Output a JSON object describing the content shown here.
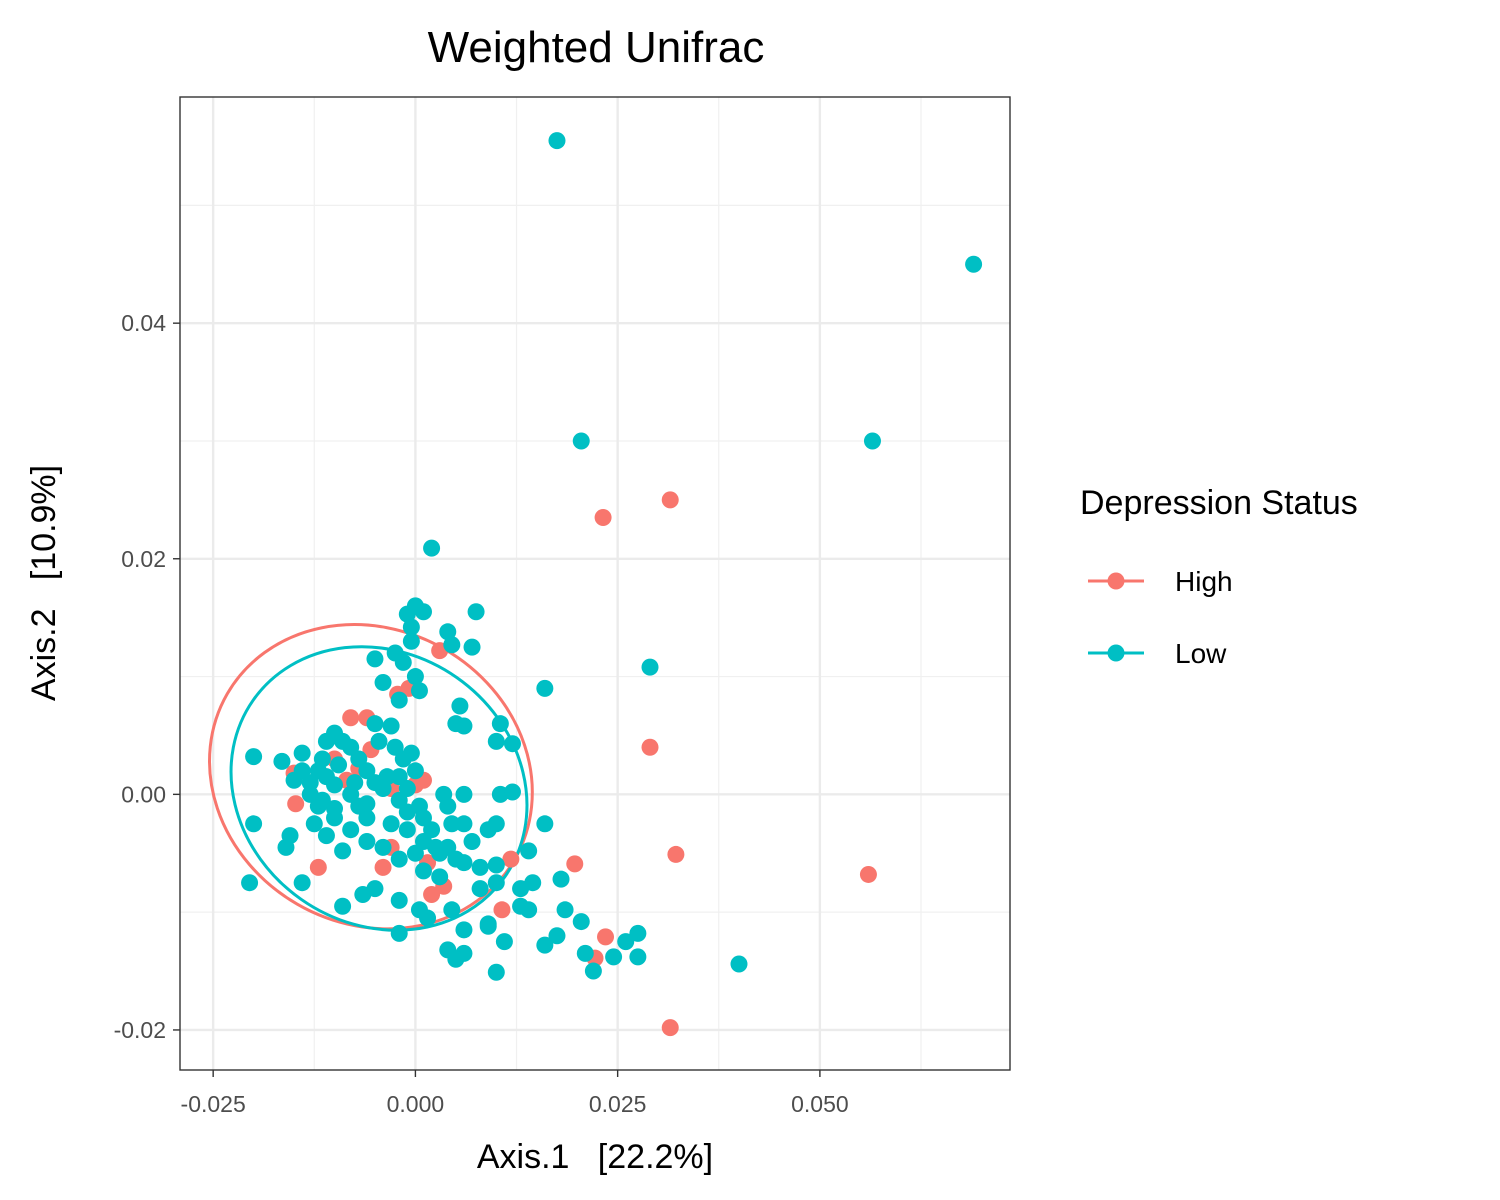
{
  "chart_data": {
    "type": "scatter",
    "title": "Weighted Unifrac",
    "xlabel": "Axis.1   [22.2%]",
    "ylabel": "Axis.2   [10.9%]",
    "xlim": [
      -0.0291,
      0.0735
    ],
    "ylim": [
      -0.0234,
      0.0592
    ],
    "x_ticks": [
      -0.025,
      0.0,
      0.025,
      0.05
    ],
    "x_tick_labels": [
      "-0.025",
      "0.000",
      "0.025",
      "0.050"
    ],
    "y_ticks": [
      -0.02,
      0.0,
      0.02,
      0.04
    ],
    "y_tick_labels": [
      "-0.02",
      "0.00",
      "0.02",
      "0.04"
    ],
    "grid": true,
    "legend": {
      "title": "Depression Status",
      "position": "right",
      "entries": [
        "High",
        "Low"
      ]
    },
    "colors": {
      "High": "#F8766D",
      "Low": "#00BFC4"
    },
    "ellipses": [
      {
        "series": "High",
        "center": [
          -0.0055,
          0.0015
        ],
        "radii": [
          0.0205,
          0.0125
        ],
        "rotation_deg": -30
      },
      {
        "series": "Low",
        "center": [
          -0.0045,
          0.0005
        ],
        "radii": [
          0.019,
          0.0115
        ],
        "rotation_deg": -35
      }
    ],
    "series": [
      {
        "name": "High",
        "points": [
          [
            0.0315,
            0.025
          ],
          [
            0.0232,
            0.0235
          ],
          [
            0.029,
            0.004
          ],
          [
            0.0322,
            -0.0051
          ],
          [
            0.056,
            -0.0068
          ],
          [
            0.0315,
            -0.0198
          ],
          [
            0.0235,
            -0.0121
          ],
          [
            0.0222,
            -0.0139
          ],
          [
            0.0197,
            -0.0059
          ],
          [
            0.0118,
            -0.0055
          ],
          [
            0.0107,
            -0.0098
          ],
          [
            0.003,
            0.0122
          ],
          [
            -0.0008,
            0.009
          ],
          [
            -0.0022,
            0.0085
          ],
          [
            -0.008,
            0.0065
          ],
          [
            -0.006,
            0.0065
          ],
          [
            -0.0055,
            0.0038
          ],
          [
            -0.01,
            0.003
          ],
          [
            -0.015,
            0.0018
          ],
          [
            -0.0148,
            -0.0008
          ],
          [
            -0.012,
            -0.0062
          ],
          [
            -0.004,
            -0.0062
          ],
          [
            -0.003,
            -0.0045
          ],
          [
            0.001,
            0.0012
          ],
          [
            0.0,
            0.0008
          ],
          [
            0.0015,
            -0.0058
          ],
          [
            0.002,
            -0.0085
          ],
          [
            0.0035,
            -0.0078
          ],
          [
            -0.007,
            0.0022
          ],
          [
            -0.0085,
            0.0012
          ],
          [
            -0.003,
            0.0005
          ]
        ]
      },
      {
        "name": "Low",
        "points": [
          [
            0.0175,
            0.0555
          ],
          [
            0.069,
            0.045
          ],
          [
            0.0565,
            0.03
          ],
          [
            0.0205,
            0.03
          ],
          [
            0.002,
            0.0209
          ],
          [
            0.029,
            0.0108
          ],
          [
            0.016,
            0.009
          ],
          [
            0.0075,
            0.0155
          ],
          [
            0.0045,
            0.0127
          ],
          [
            0.007,
            0.0125
          ],
          [
            0.004,
            0.0138
          ],
          [
            0.001,
            0.0155
          ],
          [
            -0.001,
            0.0153
          ],
          [
            0.0,
            0.016
          ],
          [
            -0.0005,
            0.0142
          ],
          [
            -0.0005,
            0.013
          ],
          [
            -0.0025,
            0.012
          ],
          [
            -0.005,
            0.0115
          ],
          [
            -0.0015,
            0.0112
          ],
          [
            0.0,
            0.01
          ],
          [
            0.0005,
            0.0088
          ],
          [
            -0.004,
            0.0095
          ],
          [
            -0.002,
            0.008
          ],
          [
            0.0055,
            0.0075
          ],
          [
            0.006,
            0.0058
          ],
          [
            0.005,
            0.006
          ],
          [
            0.0105,
            0.006
          ],
          [
            0.01,
            0.0045
          ],
          [
            0.012,
            0.0043
          ],
          [
            0.0105,
            0.0
          ],
          [
            0.012,
            0.0002
          ],
          [
            0.016,
            -0.0025
          ],
          [
            0.014,
            -0.0048
          ],
          [
            0.009,
            -0.003
          ],
          [
            0.01,
            -0.0025
          ],
          [
            0.006,
            -0.0025
          ],
          [
            0.004,
            -0.0045
          ],
          [
            0.006,
            -0.0058
          ],
          [
            0.01,
            -0.006
          ],
          [
            0.008,
            -0.0062
          ],
          [
            0.01,
            -0.0075
          ],
          [
            0.013,
            -0.008
          ],
          [
            0.0145,
            -0.0075
          ],
          [
            0.018,
            -0.0072
          ],
          [
            0.013,
            -0.0095
          ],
          [
            0.014,
            -0.0098
          ],
          [
            0.0185,
            -0.0098
          ],
          [
            0.0205,
            -0.0108
          ],
          [
            0.0175,
            -0.012
          ],
          [
            0.016,
            -0.0128
          ],
          [
            0.021,
            -0.0135
          ],
          [
            0.022,
            -0.015
          ],
          [
            0.0245,
            -0.0138
          ],
          [
            0.026,
            -0.0125
          ],
          [
            0.0275,
            -0.0118
          ],
          [
            0.0275,
            -0.0138
          ],
          [
            0.04,
            -0.0144
          ],
          [
            0.01,
            -0.0151
          ],
          [
            0.011,
            -0.0125
          ],
          [
            0.006,
            -0.0135
          ],
          [
            0.004,
            -0.0132
          ],
          [
            0.005,
            -0.014
          ],
          [
            0.006,
            -0.0115
          ],
          [
            0.0045,
            -0.0098
          ],
          [
            0.009,
            -0.011
          ],
          [
            0.009,
            -0.0112
          ],
          [
            0.0005,
            -0.0098
          ],
          [
            0.0015,
            -0.0105
          ],
          [
            -0.002,
            -0.009
          ],
          [
            -0.002,
            -0.0118
          ],
          [
            -0.005,
            -0.008
          ],
          [
            -0.0065,
            -0.0085
          ],
          [
            -0.009,
            -0.0095
          ],
          [
            -0.014,
            -0.0075
          ],
          [
            -0.0205,
            -0.0075
          ],
          [
            -0.02,
            -0.0025
          ],
          [
            -0.016,
            -0.0045
          ],
          [
            -0.0155,
            -0.0035
          ],
          [
            -0.02,
            0.0032
          ],
          [
            -0.0165,
            0.0028
          ],
          [
            -0.014,
            0.0035
          ],
          [
            -0.015,
            0.0012
          ],
          [
            -0.013,
            0.0
          ],
          [
            -0.012,
            -0.001
          ],
          [
            -0.0125,
            -0.0025
          ],
          [
            -0.01,
            -0.002
          ],
          [
            -0.011,
            -0.0035
          ],
          [
            -0.008,
            -0.003
          ],
          [
            -0.009,
            -0.0048
          ],
          [
            -0.006,
            -0.004
          ],
          [
            -0.004,
            -0.0045
          ],
          [
            -0.002,
            -0.0055
          ],
          [
            0.0,
            -0.005
          ],
          [
            0.001,
            -0.004
          ],
          [
            0.002,
            -0.003
          ],
          [
            0.004,
            -0.001
          ],
          [
            0.003,
            -0.005
          ],
          [
            0.001,
            -0.0065
          ],
          [
            0.003,
            -0.007
          ],
          [
            -0.001,
            -0.0015
          ],
          [
            -0.002,
            -0.0005
          ],
          [
            -0.004,
            0.0005
          ],
          [
            -0.005,
            0.001
          ],
          [
            -0.006,
            0.002
          ],
          [
            -0.007,
            0.003
          ],
          [
            -0.008,
            0.004
          ],
          [
            -0.009,
            0.0045
          ],
          [
            -0.01,
            0.0052
          ],
          [
            -0.011,
            0.0045
          ],
          [
            -0.005,
            0.006
          ],
          [
            -0.003,
            0.0058
          ],
          [
            -0.0045,
            0.0045
          ],
          [
            -0.0025,
            0.004
          ],
          [
            -0.0015,
            0.003
          ],
          [
            -0.0005,
            0.0035
          ],
          [
            0.0,
            0.002
          ],
          [
            -0.012,
            0.002
          ],
          [
            -0.011,
            0.0015
          ],
          [
            -0.01,
            0.0008
          ],
          [
            -0.008,
            0.0
          ],
          [
            -0.007,
            -0.001
          ],
          [
            -0.006,
            -0.002
          ],
          [
            -0.003,
            -0.0025
          ],
          [
            -0.001,
            -0.003
          ],
          [
            0.001,
            -0.002
          ],
          [
            0.0035,
            0.0
          ],
          [
            0.006,
            0.0
          ],
          [
            0.007,
            -0.004
          ],
          [
            0.005,
            -0.0055
          ],
          [
            0.008,
            -0.008
          ],
          [
            -0.013,
            0.001
          ],
          [
            -0.0115,
            -0.0005
          ],
          [
            -0.0095,
            0.0025
          ],
          [
            -0.0075,
            0.001
          ],
          [
            -0.006,
            -0.0008
          ],
          [
            -0.0035,
            0.0015
          ],
          [
            -0.002,
            0.0015
          ],
          [
            -0.001,
            0.0005
          ],
          [
            0.0005,
            -0.001
          ],
          [
            0.0025,
            -0.0045
          ],
          [
            0.0045,
            -0.0025
          ],
          [
            -0.014,
            0.002
          ],
          [
            -0.01,
            -0.0012
          ],
          [
            -0.0115,
            0.003
          ]
        ]
      }
    ]
  }
}
